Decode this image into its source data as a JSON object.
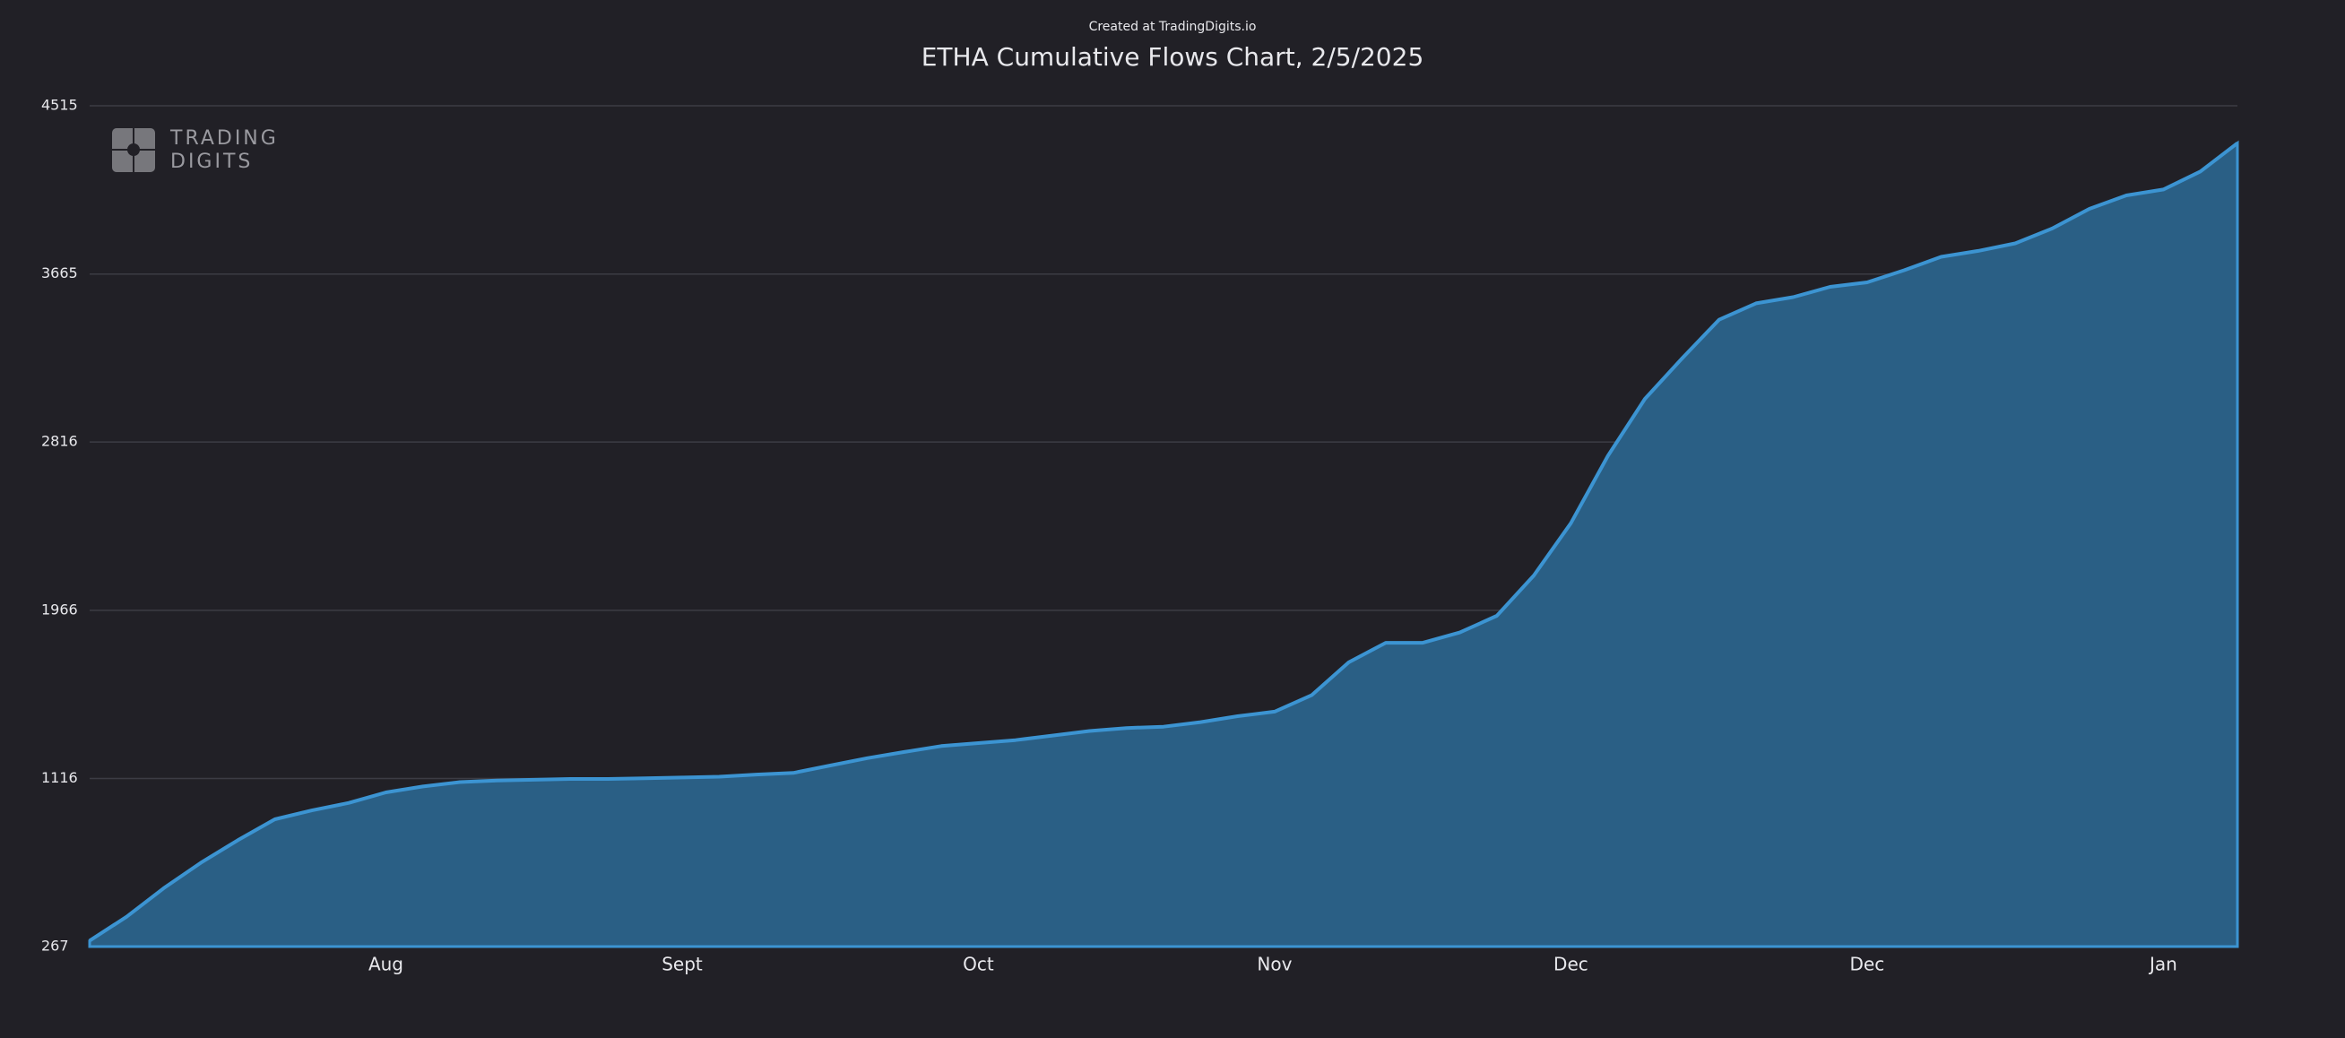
{
  "chart_data": {
    "type": "area",
    "credit": "Created at TradingDigits.io",
    "title": "ETHA Cumulative Flows Chart, 2/5/2025",
    "logo": [
      "TRADING",
      "DIGITS"
    ],
    "categories": [
      null,
      null,
      null,
      null,
      null,
      null,
      null,
      null,
      "Aug",
      null,
      null,
      null,
      null,
      null,
      null,
      null,
      "Sept",
      null,
      null,
      null,
      null,
      null,
      null,
      null,
      "Oct",
      null,
      null,
      null,
      null,
      null,
      null,
      null,
      "Nov",
      null,
      null,
      null,
      null,
      null,
      null,
      null,
      "Dec",
      null,
      null,
      null,
      null,
      null,
      null,
      null,
      "Dec",
      null,
      null,
      null,
      null,
      null,
      null,
      null,
      "Jan",
      null,
      null
    ],
    "values": [
      297,
      418,
      562,
      690,
      804,
      910,
      955,
      993,
      1046,
      1076,
      1098,
      1106,
      1110,
      1114,
      1114,
      1117,
      1121,
      1125,
      1136,
      1144,
      1182,
      1219,
      1250,
      1280,
      1295,
      1310,
      1333,
      1356,
      1371,
      1378,
      1401,
      1431,
      1454,
      1537,
      1703,
      1802,
      1802,
      1854,
      1938,
      2142,
      2406,
      2746,
      3034,
      3238,
      3434,
      3517,
      3548,
      3600,
      3623,
      3684,
      3752,
      3782,
      3820,
      3895,
      3994,
      4062,
      4092,
      4183,
      4326
    ],
    "color": "#3c94d2",
    "fill": "#2a5f85",
    "ylim": [
      267,
      4515
    ],
    "yticks": [
      267,
      1116,
      1966,
      2816,
      3665,
      4515
    ],
    "grid": true
  }
}
